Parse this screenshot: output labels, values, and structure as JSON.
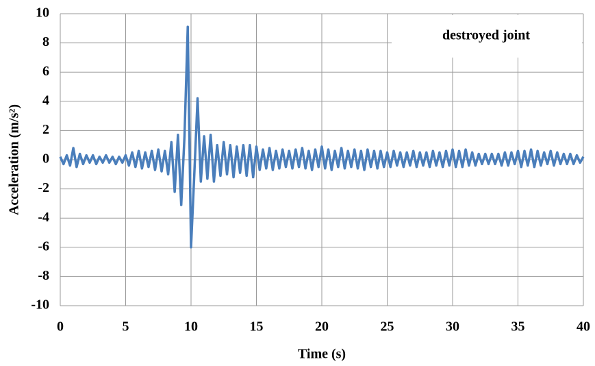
{
  "chart_data": {
    "type": "line",
    "xlabel": "Time (s)",
    "ylabel": "Acceleration (m/s²)",
    "annotation": "destroyed joint",
    "color": "#4a7ebb",
    "grid": true,
    "xlim": [
      0,
      40
    ],
    "xticks": [
      0,
      5,
      10,
      15,
      20,
      25,
      30,
      35,
      40
    ],
    "ylim": [
      -10,
      10
    ],
    "yticks": [
      -10,
      -8,
      -6,
      -4,
      -2,
      0,
      2,
      4,
      6,
      8,
      10
    ],
    "x": [
      0,
      0.25,
      0.5,
      0.75,
      1,
      1.25,
      1.5,
      1.75,
      2,
      2.25,
      2.5,
      2.75,
      3,
      3.25,
      3.5,
      3.75,
      4,
      4.25,
      4.5,
      4.75,
      5,
      5.25,
      5.5,
      5.75,
      6,
      6.25,
      6.5,
      6.75,
      7,
      7.25,
      7.5,
      7.75,
      8,
      8.25,
      8.5,
      8.75,
      9,
      9.25,
      9.5,
      9.75,
      10,
      10.25,
      10.5,
      10.75,
      11,
      11.25,
      11.5,
      11.75,
      12,
      12.25,
      12.5,
      12.75,
      13,
      13.25,
      13.5,
      13.75,
      14,
      14.25,
      14.5,
      14.75,
      15,
      15.25,
      15.5,
      15.75,
      16,
      16.25,
      16.5,
      16.75,
      17,
      17.25,
      17.5,
      17.75,
      18,
      18.25,
      18.5,
      18.75,
      19,
      19.25,
      19.5,
      19.75,
      20,
      20.25,
      20.5,
      20.75,
      21,
      21.25,
      21.5,
      21.75,
      22,
      22.25,
      22.5,
      22.75,
      23,
      23.25,
      23.5,
      23.75,
      24,
      24.25,
      24.5,
      24.75,
      25,
      25.25,
      25.5,
      25.75,
      26,
      26.25,
      26.5,
      26.75,
      27,
      27.25,
      27.5,
      27.75,
      28,
      28.25,
      28.5,
      28.75,
      29,
      29.25,
      29.5,
      29.75,
      30,
      30.25,
      30.5,
      30.75,
      31,
      31.25,
      31.5,
      31.75,
      32,
      32.25,
      32.5,
      32.75,
      33,
      33.25,
      33.5,
      33.75,
      34,
      34.25,
      34.5,
      34.75,
      35,
      35.25,
      35.5,
      35.75,
      36,
      36.25,
      36.5,
      36.75,
      37,
      37.25,
      37.5,
      37.75,
      38,
      38.25,
      38.5,
      38.75,
      39,
      39.25,
      39.5,
      39.75,
      40
    ],
    "values": [
      0.2,
      -0.3,
      0.3,
      -0.4,
      0.8,
      -0.5,
      0.4,
      -0.3,
      0.3,
      -0.2,
      0.3,
      -0.3,
      0.2,
      -0.2,
      0.3,
      -0.2,
      0.2,
      -0.3,
      0.2,
      -0.2,
      0.3,
      -0.4,
      0.5,
      -0.5,
      0.6,
      -0.6,
      0.5,
      -0.5,
      0.6,
      -0.7,
      0.7,
      -0.8,
      0.6,
      -1.0,
      1.2,
      -2.2,
      1.7,
      -3.1,
      1.6,
      9.1,
      -6.0,
      -1.0,
      4.2,
      -1.5,
      1.6,
      -1.3,
      1.7,
      -1.5,
      1.0,
      -1.1,
      1.2,
      -1.0,
      1.0,
      -1.2,
      0.9,
      -0.9,
      1.0,
      -1.1,
      1.0,
      -1.2,
      0.9,
      -0.7,
      0.7,
      -0.6,
      0.8,
      -0.7,
      0.6,
      -0.6,
      0.7,
      -0.5,
      0.6,
      -0.6,
      0.7,
      -0.5,
      0.8,
      -0.6,
      0.6,
      -0.7,
      0.7,
      -0.5,
      0.9,
      -0.6,
      0.7,
      -0.7,
      0.6,
      -0.5,
      0.8,
      -0.6,
      0.6,
      -0.5,
      0.7,
      -0.6,
      0.6,
      -0.7,
      0.7,
      -0.5,
      0.6,
      -0.6,
      0.6,
      -0.5,
      0.5,
      -0.5,
      0.6,
      -0.4,
      0.5,
      -0.5,
      0.5,
      -0.4,
      0.6,
      -0.5,
      0.5,
      -0.4,
      0.5,
      -0.5,
      0.6,
      -0.4,
      0.5,
      -0.5,
      0.6,
      -0.4,
      0.7,
      -0.5,
      0.6,
      -0.5,
      0.7,
      -0.4,
      0.5,
      -0.4,
      0.4,
      -0.3,
      0.4,
      -0.3,
      0.4,
      -0.3,
      0.4,
      -0.4,
      0.5,
      -0.4,
      0.5,
      -0.3,
      0.6,
      -0.5,
      0.6,
      -0.4,
      0.7,
      -0.5,
      0.6,
      -0.4,
      0.5,
      -0.3,
      0.6,
      -0.4,
      0.5,
      -0.3,
      0.4,
      -0.3,
      0.4,
      -0.3,
      0.3,
      -0.2,
      0.2
    ]
  }
}
